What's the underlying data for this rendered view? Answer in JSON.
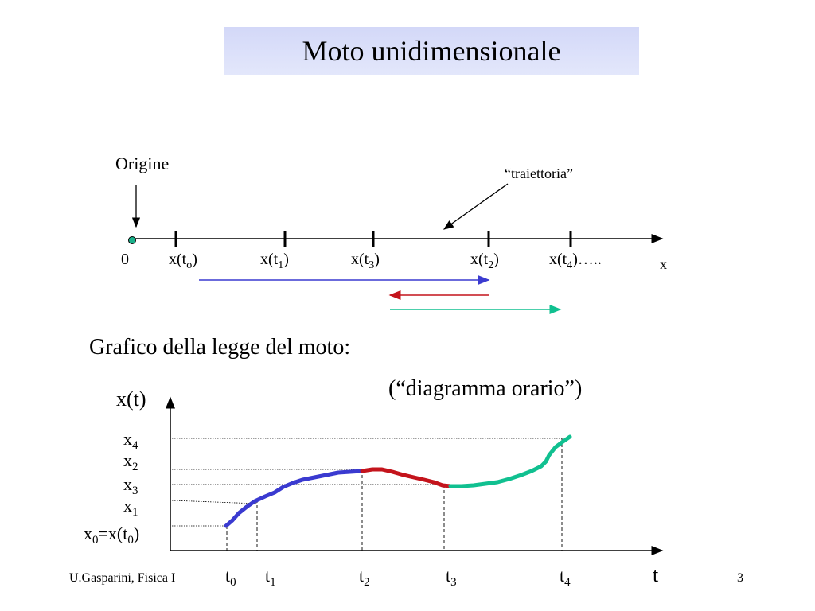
{
  "title": "Moto unidimensionale",
  "top_diagram": {
    "origin_label": "Origine",
    "trajectory_label": "“traiettoria”",
    "zero_label": "0",
    "axis_label": "x",
    "tick_labels": [
      {
        "base": "x(t",
        "sub": "o",
        "tail": ")"
      },
      {
        "base": "x(t",
        "sub": "1",
        "tail": ")"
      },
      {
        "base": "x(t",
        "sub": "3",
        "tail": ")"
      },
      {
        "base": "x(t",
        "sub": "2",
        "tail": ")"
      },
      {
        "base": "x(t",
        "sub": "4",
        "tail": ")….."
      }
    ]
  },
  "section_heading": "Grafico della legge del moto:",
  "graph_subtitle": "(“diagramma orario”)",
  "graph": {
    "ylabel": "x(t)",
    "xlabel": "t",
    "y_labels": [
      {
        "base": "x",
        "sub": "4",
        "tail": ""
      },
      {
        "base": "x",
        "sub": "2",
        "tail": ""
      },
      {
        "base": "x",
        "sub": "3",
        "tail": ""
      },
      {
        "base": "x",
        "sub": "1",
        "tail": ""
      },
      {
        "base": "x",
        "sub": "0",
        "tail": "=x(t",
        "sub2": "0",
        "tail2": ")"
      }
    ],
    "t_labels": [
      {
        "base": "t",
        "sub": "0"
      },
      {
        "base": "t",
        "sub": "1"
      },
      {
        "base": "t",
        "sub": "2"
      },
      {
        "base": "t",
        "sub": "3"
      },
      {
        "base": "t",
        "sub": "4"
      }
    ],
    "segment_colors": [
      "#3a3ad0",
      "#c4141c",
      "#10c090"
    ]
  },
  "footer": {
    "author": "U.Gasparini, Fisica I",
    "page_number": "3"
  }
}
